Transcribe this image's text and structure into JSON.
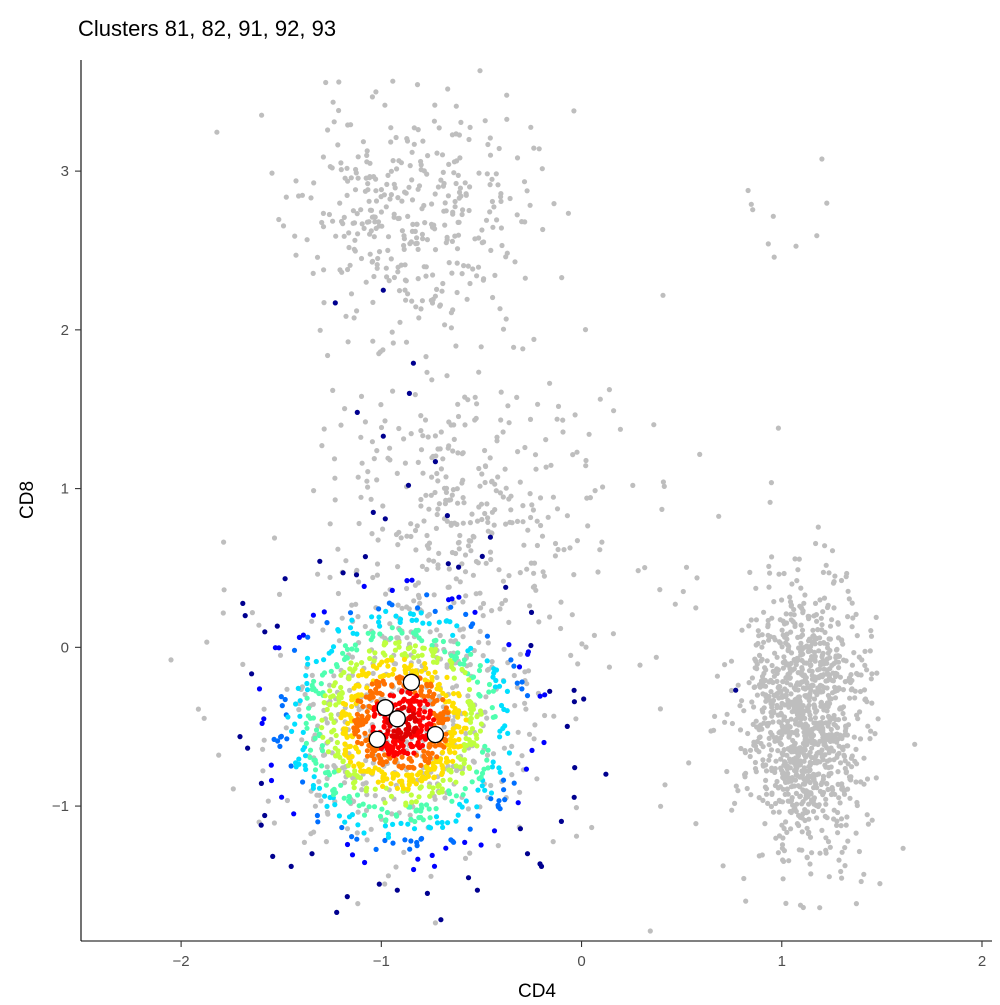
{
  "chart_data": {
    "type": "scatter",
    "title": "Clusters 81, 82, 91, 92, 93",
    "xlabel": "CD4",
    "ylabel": "CD8",
    "xlim": [
      -2.5,
      2.05
    ],
    "ylim": [
      -1.85,
      3.7
    ],
    "x_ticks": [
      -2,
      -1,
      0,
      1,
      2
    ],
    "y_ticks": [
      -1,
      0,
      1,
      2,
      3
    ],
    "x_tick_labels": [
      "−2",
      "−1",
      "0",
      "1",
      "2"
    ],
    "y_tick_labels": [
      "−1",
      "0",
      "1",
      "2",
      "3"
    ],
    "grid": false,
    "colors": {
      "background_points": "#bebebe",
      "density_scale": [
        "#00008f",
        "#0000ff",
        "#006fff",
        "#00dfff",
        "#4fffaf",
        "#bfff3f",
        "#ffdf00",
        "#ff7000",
        "#ff0000",
        "#df0000"
      ],
      "centroid_fill": "#ffffff",
      "centroid_stroke": "#000000"
    },
    "background_populations": [
      {
        "center": [
          -0.85,
          2.7
        ],
        "sd": [
          0.28,
          0.38
        ],
        "n": 380,
        "seed": 11
      },
      {
        "center": [
          -0.6,
          0.9
        ],
        "sd": [
          0.3,
          0.42
        ],
        "n": 320,
        "seed": 12
      },
      {
        "center": [
          -0.95,
          -0.45
        ],
        "sd": [
          0.36,
          0.42
        ],
        "n": 420,
        "seed": 13
      },
      {
        "center": [
          1.12,
          -0.48
        ],
        "sd": [
          0.15,
          0.42
        ],
        "n": 1100,
        "seed": 14
      },
      {
        "center": [
          0.3,
          0.3
        ],
        "sd": [
          0.5,
          0.9
        ],
        "n": 60,
        "seed": 15
      },
      {
        "center": [
          1.0,
          2.7
        ],
        "sd": [
          0.12,
          0.3
        ],
        "n": 10,
        "seed": 16
      }
    ],
    "highlighted_cluster": {
      "center": [
        -0.9,
        -0.48
      ],
      "sd": [
        0.28,
        0.36
      ],
      "n": 1200,
      "seed": 21
    },
    "highlighted_sparse": [
      [
        -1.23,
        2.17
      ],
      [
        -0.99,
        2.25
      ],
      [
        -0.84,
        1.79
      ],
      [
        -0.86,
        1.6
      ],
      [
        -1.12,
        1.48
      ],
      [
        -0.99,
        1.33
      ],
      [
        -0.73,
        1.17
      ],
      [
        -1.04,
        0.85
      ],
      [
        -0.98,
        0.81
      ],
      [
        -0.67,
        0.83
      ],
      [
        0.77,
        -0.27
      ],
      [
        -1.17,
        -1.57
      ],
      [
        -0.92,
        -1.53
      ],
      [
        -0.77,
        -1.55
      ],
      [
        -0.52,
        -1.53
      ],
      [
        -1.6,
        -1.12
      ],
      [
        -1.45,
        -1.38
      ],
      [
        -0.27,
        -1.3
      ],
      [
        -0.2,
        -1.38
      ],
      [
        -1.68,
        0.2
      ],
      [
        -0.25,
        0.22
      ]
    ],
    "centroids": [
      {
        "x": -0.85,
        "y": -0.22
      },
      {
        "x": -0.98,
        "y": -0.38
      },
      {
        "x": -0.92,
        "y": -0.45
      },
      {
        "x": -0.73,
        "y": -0.55
      },
      {
        "x": -1.02,
        "y": -0.58
      }
    ]
  }
}
